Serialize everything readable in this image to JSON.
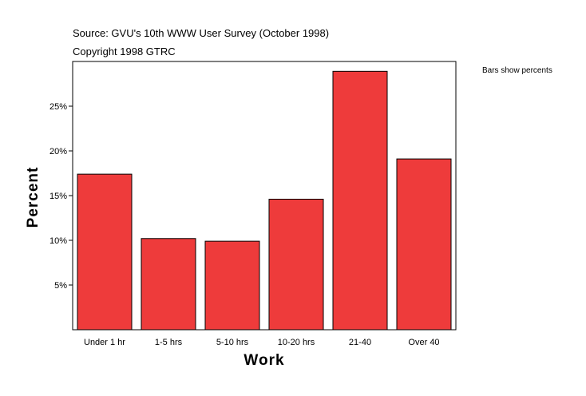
{
  "header": {
    "source": "Source: GVU's 10th WWW User Survey (October 1998)",
    "copyright": "Copyright 1998 GTRC",
    "note": "Bars show percents"
  },
  "colors": {
    "bar": "#ee3b3b",
    "bar_stroke": "#000000",
    "frame": "#000000"
  },
  "chart_data": {
    "type": "bar",
    "categories": [
      "Under 1 hr",
      "1-5 hrs",
      "5-10 hrs",
      "10-20 hrs",
      "21-40",
      "Over 40"
    ],
    "values": [
      17.4,
      10.2,
      9.9,
      14.6,
      28.9,
      19.1
    ],
    "xlabel": "Work",
    "ylabel": "Percent",
    "ylim": [
      0,
      30
    ],
    "yticks": [
      5,
      10,
      15,
      20,
      25
    ],
    "ytick_labels": [
      "5%",
      "10%",
      "15%",
      "20%",
      "25%"
    ],
    "grid": false,
    "legend": "none"
  }
}
